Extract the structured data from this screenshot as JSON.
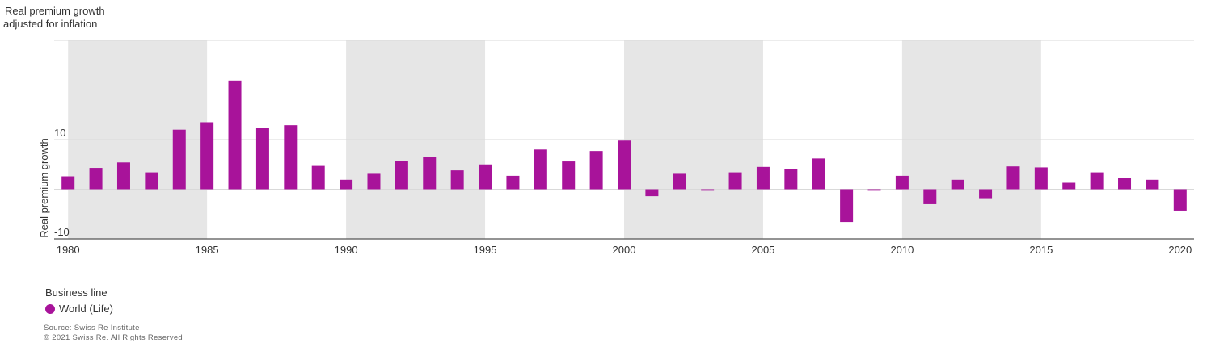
{
  "title_lines": [
    "Real premium growth",
    "adjusted for inflation"
  ],
  "legend": {
    "title": "Business line",
    "item": "World (Life)"
  },
  "source": {
    "line1": "Source: Swiss Re Institute",
    "line2": "© 2021 Swiss Re. All Rights Reserved"
  },
  "colors": {
    "bar": "#A8139A",
    "band": "#E6E6E6",
    "grid": "#D9D9D9",
    "axis": "#555555"
  },
  "chart_data": {
    "type": "bar",
    "ylabel": "Real premium growth",
    "ylim": [
      -10,
      30
    ],
    "yticks": [
      {
        "value": 10,
        "label": "10"
      },
      {
        "value": -10,
        "label": "-10"
      }
    ],
    "xticks": [
      1980,
      1985,
      1990,
      1995,
      2000,
      2005,
      2010,
      2015,
      2020
    ],
    "shaded_periods": [
      [
        1980,
        1985
      ],
      [
        1990,
        1995
      ],
      [
        2000,
        2005
      ],
      [
        2010,
        2015
      ]
    ],
    "grid": true,
    "legend_position": "bottom-left",
    "series": [
      {
        "name": "World (Life)",
        "x": [
          1980,
          1981,
          1982,
          1983,
          1984,
          1985,
          1986,
          1987,
          1988,
          1989,
          1990,
          1991,
          1992,
          1993,
          1994,
          1995,
          1996,
          1997,
          1998,
          1999,
          2000,
          2001,
          2002,
          2003,
          2004,
          2005,
          2006,
          2007,
          2008,
          2009,
          2010,
          2011,
          2012,
          2013,
          2014,
          2015,
          2016,
          2017,
          2018,
          2019,
          2020
        ],
        "values": [
          2.6,
          4.3,
          5.4,
          3.4,
          12.0,
          13.5,
          21.9,
          12.4,
          12.9,
          4.7,
          1.9,
          3.1,
          5.7,
          6.5,
          3.8,
          5.0,
          2.7,
          8.0,
          5.6,
          7.7,
          9.8,
          -1.4,
          3.1,
          -0.3,
          3.4,
          4.5,
          4.1,
          6.2,
          -6.6,
          -0.3,
          2.7,
          -3.0,
          1.9,
          -1.8,
          4.6,
          4.4,
          1.3,
          3.4,
          2.3,
          1.9,
          -4.3
        ]
      }
    ]
  }
}
